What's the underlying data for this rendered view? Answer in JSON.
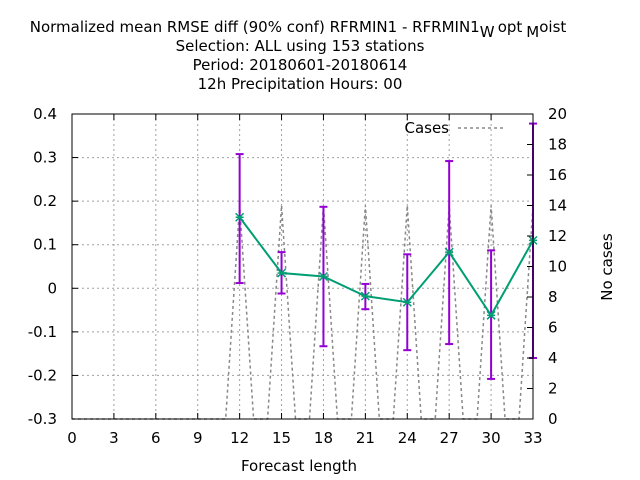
{
  "chart_data": {
    "type": "line",
    "title_lines": [
      "Normalized mean RMSE diff (90% conf) RFRMIN1 - RFRMIN1",
      "Selection: ALL using   153 stations",
      "Period: 20180601-20180614",
      "12h Precipitation   Hours:  00"
    ],
    "title_suffix_parts": [
      "W",
      "opt",
      "M",
      "oist"
    ],
    "xlabel": "Forecast length",
    "y2label": "No cases",
    "xlim": [
      0,
      33
    ],
    "ylim": [
      -0.3,
      0.4
    ],
    "y2lim": [
      0,
      20
    ],
    "x_ticks": [
      "0",
      "3",
      "6",
      "9",
      "12",
      "15",
      "18",
      "21",
      "24",
      "27",
      "30",
      "33"
    ],
    "y_ticks": [
      "-0.3",
      "-0.2",
      "-0.1",
      "0",
      "0.1",
      "0.2",
      "0.3",
      "0.4"
    ],
    "y2_ticks": [
      "0",
      "2",
      "4",
      "6",
      "8",
      "10",
      "12",
      "14",
      "16",
      "18",
      "20"
    ],
    "grid": true,
    "legend_position": "top-right",
    "series": [
      {
        "x": [
          12,
          15,
          18,
          21,
          24,
          27,
          30,
          33
        ],
        "y": [
          0.163,
          0.035,
          0.027,
          -0.018,
          -0.032,
          0.083,
          -0.062,
          0.11
        ],
        "err_low": [
          0.012,
          -0.012,
          -0.133,
          -0.048,
          -0.142,
          -0.128,
          -0.208,
          -0.16
        ],
        "err_high": [
          0.308,
          0.083,
          0.187,
          0.01,
          0.078,
          0.292,
          0.087,
          0.378
        ],
        "color": "#009e73",
        "errorbar_color": "#9400d3"
      },
      {
        "name": "Cases",
        "axis": "y2",
        "x": [
          0,
          1,
          2,
          3,
          4,
          5,
          6,
          7,
          8,
          9,
          10,
          11,
          12,
          13,
          14,
          15,
          16,
          17,
          18,
          19,
          20,
          21,
          22,
          23,
          24,
          25,
          26,
          27,
          28,
          29,
          30,
          31,
          32,
          33
        ],
        "y": [
          0,
          0,
          0,
          0,
          0,
          0,
          0,
          0,
          0,
          0,
          0,
          0,
          14,
          0,
          0,
          14,
          0,
          0,
          14,
          0,
          0,
          14,
          0,
          0,
          14,
          0,
          0,
          14,
          0,
          0,
          14,
          0,
          0,
          14
        ],
        "color": "#888888",
        "dashed": true
      }
    ]
  }
}
